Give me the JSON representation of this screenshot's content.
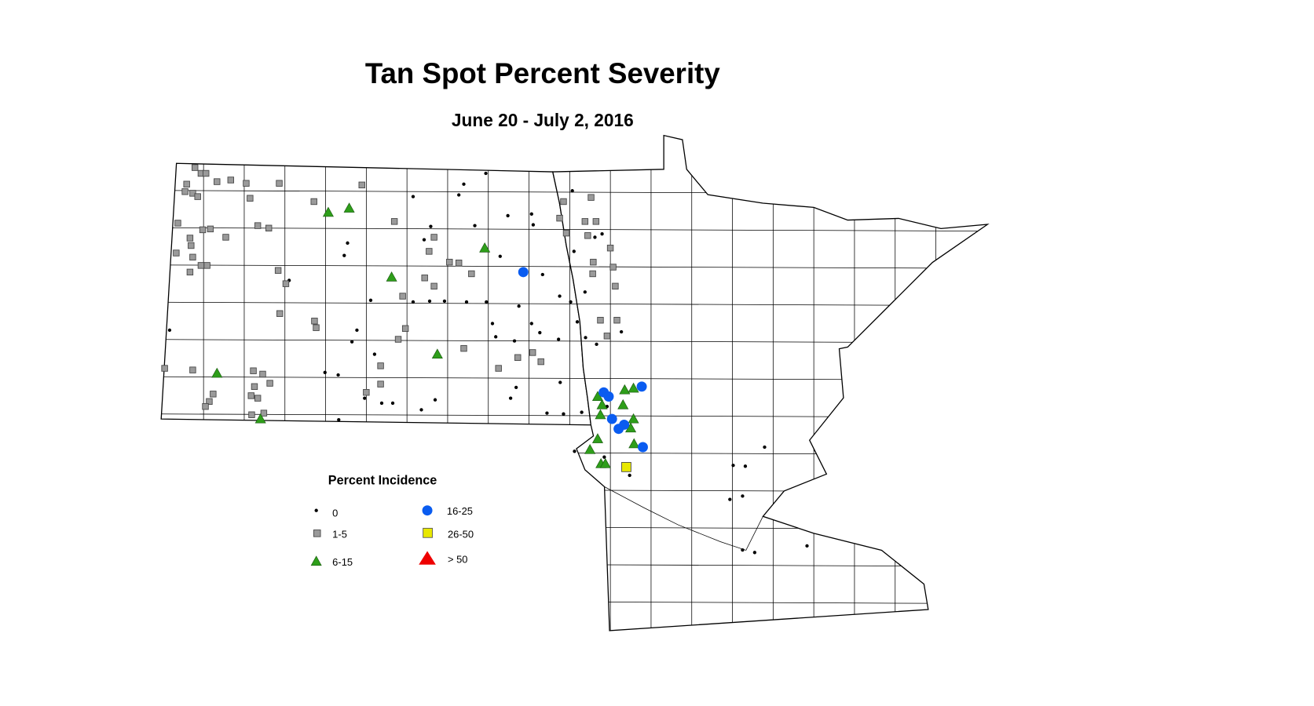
{
  "title": "Tan Spot Percent Severity",
  "subtitle": "June 20 - July 2, 2016",
  "legend": {
    "title": "Percent Incidence",
    "items": [
      {
        "label": "0",
        "symbol": "dot",
        "color": "#000000"
      },
      {
        "label": "1-5",
        "symbol": "square",
        "color": "#9a9a9a"
      },
      {
        "label": "6-15",
        "symbol": "triangle",
        "color": "#2e9e1a"
      },
      {
        "label": "16-25",
        "symbol": "circle",
        "color": "#0a5cf0"
      },
      {
        "label": "26-50",
        "symbol": "square",
        "color": "#e8e800"
      },
      {
        "label": "> 50",
        "symbol": "triangle",
        "color": "#ee0000"
      }
    ]
  },
  "markers": {
    "16-25": [
      [
        -97.55,
        47.71
      ],
      [
        -96.09,
        46.26
      ],
      [
        -96.0,
        46.21
      ],
      [
        -95.94,
        45.94
      ],
      [
        -95.82,
        45.82
      ],
      [
        -95.72,
        45.87
      ],
      [
        -95.4,
        46.33
      ],
      [
        -95.38,
        45.6
      ]
    ],
    "26-50": [
      [
        -95.68,
        45.36
      ]
    ],
    "> 50": [],
    "6-15": [
      [
        -101.09,
        48.43
      ],
      [
        -100.71,
        48.48
      ],
      [
        -98.25,
        48.0
      ],
      [
        -99.94,
        47.65
      ],
      [
        -99.11,
        46.72
      ],
      [
        -103.11,
        46.49
      ],
      [
        -102.32,
        45.94
      ],
      [
        -96.2,
        46.21
      ],
      [
        -96.12,
        46.11
      ],
      [
        -96.15,
        45.99
      ],
      [
        -95.74,
        46.11
      ],
      [
        -95.71,
        46.29
      ],
      [
        -95.55,
        46.31
      ],
      [
        -95.55,
        45.94
      ],
      [
        -95.6,
        45.83
      ],
      [
        -95.54,
        45.64
      ],
      [
        -96.2,
        45.7
      ],
      [
        -96.34,
        45.57
      ],
      [
        -96.14,
        45.4
      ],
      [
        -96.06,
        45.4
      ]
    ],
    "1-5": [
      [
        -103.51,
        48.97
      ],
      [
        -103.4,
        48.9
      ],
      [
        -103.31,
        48.9
      ],
      [
        -103.66,
        48.77
      ],
      [
        -103.69,
        48.68
      ],
      [
        -103.55,
        48.66
      ],
      [
        -103.46,
        48.62
      ],
      [
        -103.11,
        48.8
      ],
      [
        -102.86,
        48.82
      ],
      [
        -102.58,
        48.78
      ],
      [
        -101.98,
        48.78
      ],
      [
        -100.48,
        48.76
      ],
      [
        -103.82,
        48.3
      ],
      [
        -103.37,
        48.22
      ],
      [
        -103.23,
        48.23
      ],
      [
        -102.95,
        48.13
      ],
      [
        -103.6,
        48.12
      ],
      [
        -103.58,
        48.03
      ],
      [
        -103.85,
        47.94
      ],
      [
        -103.55,
        47.89
      ],
      [
        -103.4,
        47.79
      ],
      [
        -103.29,
        47.79
      ],
      [
        -103.6,
        47.71
      ],
      [
        -102.37,
        48.27
      ],
      [
        -102.17,
        48.24
      ],
      [
        -102.51,
        48.6
      ],
      [
        -101.35,
        48.56
      ],
      [
        -102.0,
        47.73
      ],
      [
        -101.86,
        47.57
      ],
      [
        -101.97,
        47.21
      ],
      [
        -101.34,
        47.12
      ],
      [
        -101.31,
        47.04
      ],
      [
        -99.89,
        48.32
      ],
      [
        -99.17,
        48.13
      ],
      [
        -99.26,
        47.96
      ],
      [
        -98.72,
        47.82
      ],
      [
        -98.49,
        47.69
      ],
      [
        -99.74,
        47.42
      ],
      [
        -99.69,
        47.03
      ],
      [
        -99.82,
        46.9
      ],
      [
        -98.63,
        46.79
      ],
      [
        -100.14,
        46.58
      ],
      [
        -100.14,
        46.36
      ],
      [
        -100.4,
        46.26
      ],
      [
        -104.06,
        46.55
      ],
      [
        -103.55,
        46.53
      ],
      [
        -102.45,
        46.52
      ],
      [
        -102.28,
        46.48
      ],
      [
        -102.15,
        46.37
      ],
      [
        -102.43,
        46.33
      ],
      [
        -102.49,
        46.22
      ],
      [
        -102.37,
        46.19
      ],
      [
        -103.18,
        46.24
      ],
      [
        -103.25,
        46.15
      ],
      [
        -103.32,
        46.09
      ],
      [
        -102.48,
        45.99
      ],
      [
        -102.26,
        46.01
      ],
      [
        -96.82,
        48.56
      ],
      [
        -96.89,
        48.36
      ],
      [
        -96.43,
        48.32
      ],
      [
        -96.23,
        48.32
      ],
      [
        -96.77,
        48.18
      ],
      [
        -96.38,
        48.15
      ],
      [
        -95.97,
        48.0
      ],
      [
        -96.28,
        47.83
      ],
      [
        -95.92,
        47.77
      ],
      [
        -95.88,
        47.54
      ],
      [
        -96.29,
        47.69
      ],
      [
        -96.15,
        47.13
      ],
      [
        -96.03,
        46.94
      ],
      [
        -95.85,
        47.13
      ],
      [
        -97.65,
        46.68
      ],
      [
        -97.23,
        46.63
      ],
      [
        -97.38,
        46.74
      ],
      [
        -98.0,
        46.55
      ],
      [
        -99.34,
        47.64
      ],
      [
        -99.17,
        47.54
      ],
      [
        -98.89,
        47.83
      ],
      [
        -96.32,
        48.61
      ]
    ],
    "0": [
      [
        -98.23,
        48.9
      ],
      [
        -99.55,
        48.62
      ],
      [
        -98.72,
        48.64
      ],
      [
        -98.63,
        48.77
      ],
      [
        -99.23,
        48.26
      ],
      [
        -99.35,
        48.1
      ],
      [
        -98.43,
        48.27
      ],
      [
        -97.83,
        48.39
      ],
      [
        -97.4,
        48.41
      ],
      [
        -97.37,
        48.28
      ],
      [
        -97.97,
        47.9
      ],
      [
        -97.2,
        47.68
      ],
      [
        -96.66,
        48.69
      ],
      [
        -96.25,
        48.13
      ],
      [
        -96.12,
        48.17
      ],
      [
        -96.63,
        47.96
      ],
      [
        -96.43,
        47.47
      ],
      [
        -96.89,
        47.42
      ],
      [
        -96.69,
        47.35
      ],
      [
        -96.57,
        47.11
      ],
      [
        -96.42,
        46.92
      ],
      [
        -95.77,
        46.99
      ],
      [
        -96.22,
        46.84
      ],
      [
        -97.4,
        47.09
      ],
      [
        -97.25,
        46.98
      ],
      [
        -96.91,
        46.9
      ],
      [
        -97.71,
        46.88
      ],
      [
        -98.05,
        46.93
      ],
      [
        -98.11,
        47.09
      ],
      [
        -97.63,
        47.3
      ],
      [
        -98.22,
        47.35
      ],
      [
        -98.98,
        47.36
      ],
      [
        -99.25,
        47.36
      ],
      [
        -99.55,
        47.35
      ],
      [
        -100.32,
        47.37
      ],
      [
        -98.58,
        47.35
      ],
      [
        -100.57,
        47.01
      ],
      [
        -100.66,
        46.87
      ],
      [
        -100.25,
        46.72
      ],
      [
        -100.91,
        46.47
      ],
      [
        -101.15,
        46.5
      ],
      [
        -100.43,
        46.19
      ],
      [
        -100.12,
        46.13
      ],
      [
        -99.92,
        46.13
      ],
      [
        -99.4,
        46.05
      ],
      [
        -99.15,
        46.17
      ],
      [
        -97.68,
        46.32
      ],
      [
        -97.78,
        46.19
      ],
      [
        -96.88,
        46.38
      ],
      [
        -97.12,
        46.01
      ],
      [
        -96.82,
        46.0
      ],
      [
        -96.49,
        46.02
      ],
      [
        -96.03,
        46.09
      ],
      [
        -100.9,
        45.93
      ],
      [
        -103.97,
        47.01
      ],
      [
        -101.8,
        47.61
      ],
      [
        -100.74,
        48.06
      ],
      [
        -100.8,
        47.91
      ],
      [
        -93.17,
        45.6
      ],
      [
        -93.74,
        45.38
      ],
      [
        -93.52,
        45.37
      ],
      [
        -93.57,
        45.01
      ],
      [
        -93.8,
        44.97
      ],
      [
        -93.57,
        44.36
      ],
      [
        -93.35,
        44.33
      ],
      [
        -92.4,
        44.41
      ],
      [
        -95.62,
        45.26
      ],
      [
        -96.08,
        45.48
      ],
      [
        -96.62,
        45.55
      ]
    ]
  }
}
